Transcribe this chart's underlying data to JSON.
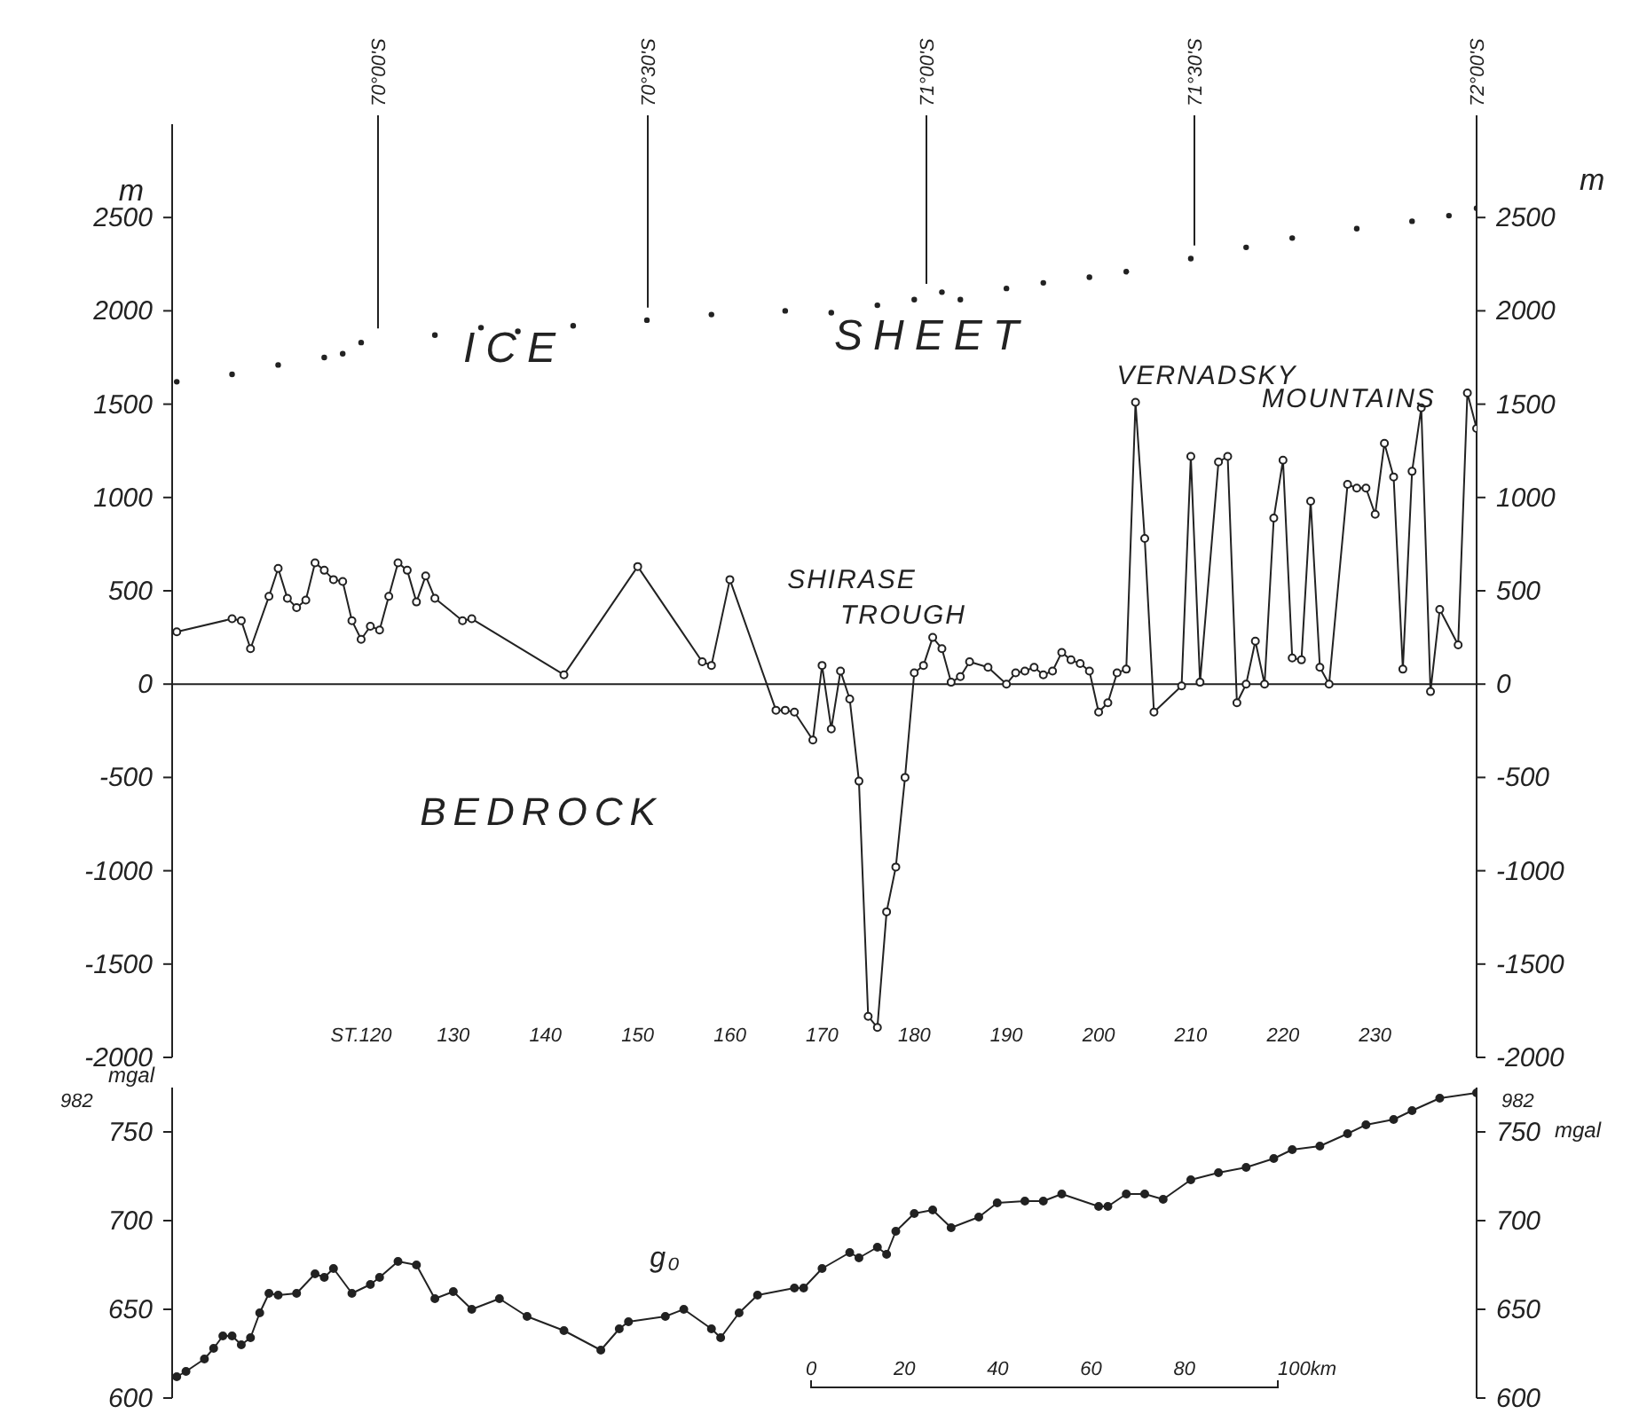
{
  "chart_data": [
    {
      "type": "line",
      "xlim": [
        99.5,
        241
      ],
      "xticks": [
        {
          "value": 120,
          "label": "ST.120"
        },
        130,
        140,
        150,
        160,
        170,
        180,
        190,
        200,
        210,
        220,
        230
      ],
      "ylim": [
        -2000,
        3000
      ],
      "yticks": [
        -2000,
        -1500,
        -1000,
        -500,
        0,
        500,
        1000,
        1500,
        2000,
        2500
      ],
      "y2lim": [
        -2000,
        3000
      ],
      "y2ticks": [
        -2000,
        -1500,
        -1000,
        -500,
        0,
        500,
        1000,
        1500,
        2000,
        2500
      ],
      "ylabel": "m",
      "y2label": "m",
      "marker": "circle",
      "ref_lines": [
        {
          "axis": "y",
          "value": 0
        }
      ],
      "series": [
        {
          "type": "scatter",
          "color": "#222222",
          "x": [
            100,
            106,
            111,
            116,
            118,
            120,
            128,
            133,
            137,
            143,
            151,
            158,
            166,
            171,
            176,
            180,
            183,
            185,
            190,
            194,
            199,
            203,
            210,
            216,
            221,
            228,
            234,
            238,
            241
          ],
          "values": [
            1620,
            1660,
            1710,
            1750,
            1770,
            1830,
            1870,
            1910,
            1890,
            1920,
            1950,
            1980,
            2000,
            1990,
            2030,
            2060,
            2100,
            2060,
            2120,
            2150,
            2180,
            2210,
            2280,
            2340,
            2390,
            2440,
            2480,
            2510,
            2550
          ]
        },
        {
          "type": "line",
          "color": "#222222",
          "x": [
            100,
            106,
            107,
            108,
            110,
            111,
            112,
            113,
            114,
            115,
            116,
            117,
            118,
            119,
            120,
            121,
            122,
            123,
            124,
            125,
            126,
            127,
            128,
            131,
            132,
            142,
            150,
            157,
            158,
            160,
            165,
            166,
            167,
            169,
            170,
            171,
            172,
            173,
            174,
            175,
            176,
            177,
            178,
            179,
            180,
            181,
            182,
            183,
            184,
            185,
            186,
            188,
            190,
            191,
            192,
            193,
            194,
            195,
            196,
            197,
            198,
            199,
            200,
            201,
            202,
            203,
            204,
            205,
            206,
            209,
            210,
            211,
            213,
            214,
            215,
            216,
            217,
            218,
            219,
            220,
            221,
            222,
            223,
            224,
            225,
            227,
            228,
            229,
            230,
            231,
            232,
            233,
            234,
            235,
            236,
            237,
            239,
            240,
            241
          ],
          "values": [
            280,
            350,
            340,
            190,
            470,
            620,
            460,
            410,
            450,
            650,
            610,
            560,
            550,
            340,
            240,
            310,
            290,
            470,
            650,
            610,
            440,
            580,
            460,
            340,
            350,
            50,
            630,
            120,
            100,
            560,
            -140,
            -140,
            -150,
            -300,
            100,
            -240,
            70,
            -80,
            -520,
            -1780,
            -1840,
            -1220,
            -980,
            -500,
            60,
            100,
            250,
            190,
            10,
            40,
            120,
            90,
            0,
            60,
            70,
            90,
            50,
            70,
            170,
            130,
            110,
            70,
            -150,
            -100,
            60,
            80,
            1510,
            780,
            -150,
            -10,
            1220,
            10,
            1190,
            1220,
            -100,
            0,
            230,
            0,
            890,
            1200,
            140,
            130,
            980,
            90,
            0,
            1070,
            1050,
            1050,
            910,
            1290,
            1110,
            80,
            1140,
            1480,
            -40,
            400,
            210,
            1560,
            1370
          ]
        }
      ],
      "annotations": [
        "ICE",
        "SHEET",
        "VERNADSKY",
        "MOUNTAINS",
        "SHIRASE",
        "TROUGH",
        "BEDROCK",
        "70°00'S",
        "70°30'S",
        "71°00'S",
        "71°30'S",
        "72°00'S"
      ]
    },
    {
      "type": "line",
      "xlim": [
        99.5,
        241
      ],
      "ylim": [
        600,
        775
      ],
      "yticks": [
        600,
        650,
        700,
        750
      ],
      "y2lim": [
        600,
        775
      ],
      "y2ticks": [
        600,
        650,
        700,
        750
      ],
      "ylabel": "mgal",
      "y2label": "mgal",
      "tick_labels": "y",
      "marker": "circle",
      "series": [
        {
          "type": "line",
          "color": "#222222",
          "x": [
            100,
            101,
            103,
            104,
            105,
            106,
            107,
            108,
            109,
            110,
            111,
            113,
            115,
            116,
            117,
            119,
            121,
            122,
            124,
            126,
            128,
            130,
            132,
            135,
            138,
            142,
            146,
            148,
            149,
            153,
            155,
            158,
            159,
            161,
            163,
            167,
            168,
            170,
            173,
            174,
            176,
            177,
            178,
            180,
            182,
            184,
            187,
            189,
            192,
            194,
            196,
            200,
            201,
            203,
            205,
            207,
            210,
            213,
            216,
            219,
            221,
            224,
            227,
            229,
            232,
            234,
            237,
            241
          ],
          "values": [
            612,
            615,
            622,
            628,
            635,
            635,
            630,
            634,
            648,
            659,
            658,
            659,
            670,
            668,
            673,
            659,
            664,
            668,
            677,
            675,
            656,
            660,
            650,
            656,
            646,
            638,
            627,
            639,
            643,
            646,
            650,
            639,
            634,
            648,
            658,
            662,
            662,
            673,
            682,
            679,
            685,
            681,
            694,
            704,
            706,
            696,
            702,
            710,
            711,
            711,
            715,
            708,
            708,
            715,
            715,
            712,
            723,
            727,
            730,
            735,
            740,
            742,
            749,
            754,
            757,
            762,
            769,
            772
          ]
        }
      ],
      "annotations": [
        "g₀",
        "982",
        "982",
        "0",
        "20",
        "40",
        "60",
        "80",
        "100km"
      ]
    }
  ]
}
